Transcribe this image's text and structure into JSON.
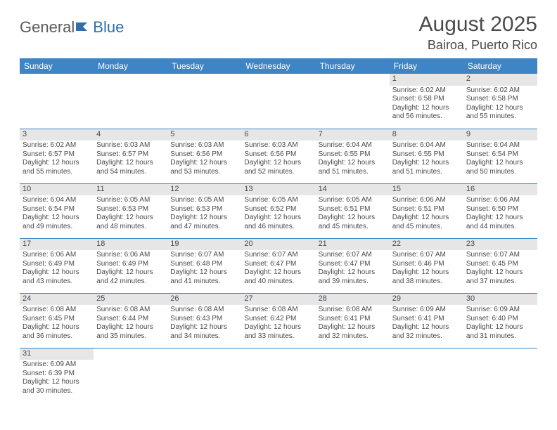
{
  "logo": {
    "part1": "General",
    "part2": "Blue"
  },
  "title": "August 2025",
  "location": "Bairoa, Puerto Rico",
  "header_bg": "#3d85c6",
  "daynum_bg": "#e6e6e6",
  "text_color": "#4a4a4a",
  "day_headers": [
    "Sunday",
    "Monday",
    "Tuesday",
    "Wednesday",
    "Thursday",
    "Friday",
    "Saturday"
  ],
  "weeks": [
    [
      null,
      null,
      null,
      null,
      null,
      {
        "n": "1",
        "sr": "Sunrise: 6:02 AM",
        "ss": "Sunset: 6:58 PM",
        "dl": "Daylight: 12 hours and 56 minutes."
      },
      {
        "n": "2",
        "sr": "Sunrise: 6:02 AM",
        "ss": "Sunset: 6:58 PM",
        "dl": "Daylight: 12 hours and 55 minutes."
      }
    ],
    [
      {
        "n": "3",
        "sr": "Sunrise: 6:02 AM",
        "ss": "Sunset: 6:57 PM",
        "dl": "Daylight: 12 hours and 55 minutes."
      },
      {
        "n": "4",
        "sr": "Sunrise: 6:03 AM",
        "ss": "Sunset: 6:57 PM",
        "dl": "Daylight: 12 hours and 54 minutes."
      },
      {
        "n": "5",
        "sr": "Sunrise: 6:03 AM",
        "ss": "Sunset: 6:56 PM",
        "dl": "Daylight: 12 hours and 53 minutes."
      },
      {
        "n": "6",
        "sr": "Sunrise: 6:03 AM",
        "ss": "Sunset: 6:56 PM",
        "dl": "Daylight: 12 hours and 52 minutes."
      },
      {
        "n": "7",
        "sr": "Sunrise: 6:04 AM",
        "ss": "Sunset: 6:55 PM",
        "dl": "Daylight: 12 hours and 51 minutes."
      },
      {
        "n": "8",
        "sr": "Sunrise: 6:04 AM",
        "ss": "Sunset: 6:55 PM",
        "dl": "Daylight: 12 hours and 51 minutes."
      },
      {
        "n": "9",
        "sr": "Sunrise: 6:04 AM",
        "ss": "Sunset: 6:54 PM",
        "dl": "Daylight: 12 hours and 50 minutes."
      }
    ],
    [
      {
        "n": "10",
        "sr": "Sunrise: 6:04 AM",
        "ss": "Sunset: 6:54 PM",
        "dl": "Daylight: 12 hours and 49 minutes."
      },
      {
        "n": "11",
        "sr": "Sunrise: 6:05 AM",
        "ss": "Sunset: 6:53 PM",
        "dl": "Daylight: 12 hours and 48 minutes."
      },
      {
        "n": "12",
        "sr": "Sunrise: 6:05 AM",
        "ss": "Sunset: 6:53 PM",
        "dl": "Daylight: 12 hours and 47 minutes."
      },
      {
        "n": "13",
        "sr": "Sunrise: 6:05 AM",
        "ss": "Sunset: 6:52 PM",
        "dl": "Daylight: 12 hours and 46 minutes."
      },
      {
        "n": "14",
        "sr": "Sunrise: 6:05 AM",
        "ss": "Sunset: 6:51 PM",
        "dl": "Daylight: 12 hours and 45 minutes."
      },
      {
        "n": "15",
        "sr": "Sunrise: 6:06 AM",
        "ss": "Sunset: 6:51 PM",
        "dl": "Daylight: 12 hours and 45 minutes."
      },
      {
        "n": "16",
        "sr": "Sunrise: 6:06 AM",
        "ss": "Sunset: 6:50 PM",
        "dl": "Daylight: 12 hours and 44 minutes."
      }
    ],
    [
      {
        "n": "17",
        "sr": "Sunrise: 6:06 AM",
        "ss": "Sunset: 6:49 PM",
        "dl": "Daylight: 12 hours and 43 minutes."
      },
      {
        "n": "18",
        "sr": "Sunrise: 6:06 AM",
        "ss": "Sunset: 6:49 PM",
        "dl": "Daylight: 12 hours and 42 minutes."
      },
      {
        "n": "19",
        "sr": "Sunrise: 6:07 AM",
        "ss": "Sunset: 6:48 PM",
        "dl": "Daylight: 12 hours and 41 minutes."
      },
      {
        "n": "20",
        "sr": "Sunrise: 6:07 AM",
        "ss": "Sunset: 6:47 PM",
        "dl": "Daylight: 12 hours and 40 minutes."
      },
      {
        "n": "21",
        "sr": "Sunrise: 6:07 AM",
        "ss": "Sunset: 6:47 PM",
        "dl": "Daylight: 12 hours and 39 minutes."
      },
      {
        "n": "22",
        "sr": "Sunrise: 6:07 AM",
        "ss": "Sunset: 6:46 PM",
        "dl": "Daylight: 12 hours and 38 minutes."
      },
      {
        "n": "23",
        "sr": "Sunrise: 6:07 AM",
        "ss": "Sunset: 6:45 PM",
        "dl": "Daylight: 12 hours and 37 minutes."
      }
    ],
    [
      {
        "n": "24",
        "sr": "Sunrise: 6:08 AM",
        "ss": "Sunset: 6:45 PM",
        "dl": "Daylight: 12 hours and 36 minutes."
      },
      {
        "n": "25",
        "sr": "Sunrise: 6:08 AM",
        "ss": "Sunset: 6:44 PM",
        "dl": "Daylight: 12 hours and 35 minutes."
      },
      {
        "n": "26",
        "sr": "Sunrise: 6:08 AM",
        "ss": "Sunset: 6:43 PM",
        "dl": "Daylight: 12 hours and 34 minutes."
      },
      {
        "n": "27",
        "sr": "Sunrise: 6:08 AM",
        "ss": "Sunset: 6:42 PM",
        "dl": "Daylight: 12 hours and 33 minutes."
      },
      {
        "n": "28",
        "sr": "Sunrise: 6:08 AM",
        "ss": "Sunset: 6:41 PM",
        "dl": "Daylight: 12 hours and 32 minutes."
      },
      {
        "n": "29",
        "sr": "Sunrise: 6:09 AM",
        "ss": "Sunset: 6:41 PM",
        "dl": "Daylight: 12 hours and 32 minutes."
      },
      {
        "n": "30",
        "sr": "Sunrise: 6:09 AM",
        "ss": "Sunset: 6:40 PM",
        "dl": "Daylight: 12 hours and 31 minutes."
      }
    ],
    [
      {
        "n": "31",
        "sr": "Sunrise: 6:09 AM",
        "ss": "Sunset: 6:39 PM",
        "dl": "Daylight: 12 hours and 30 minutes."
      },
      null,
      null,
      null,
      null,
      null,
      null
    ]
  ]
}
